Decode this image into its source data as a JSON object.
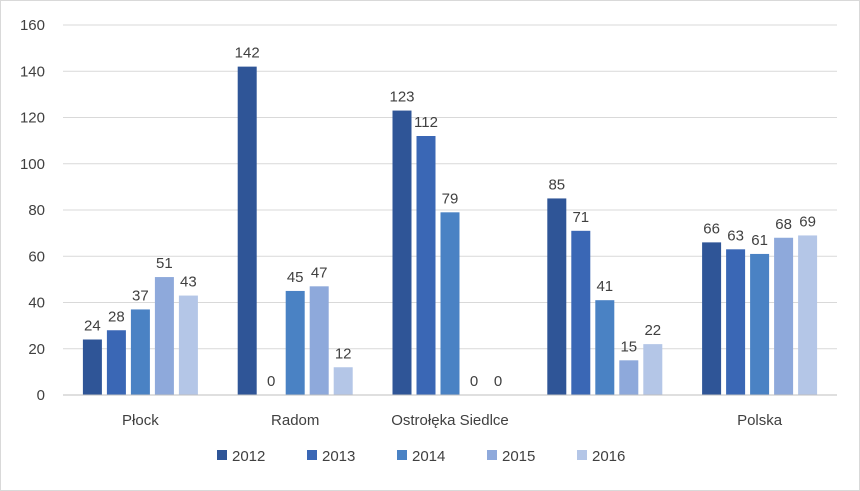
{
  "chart_data": {
    "type": "bar",
    "categories": [
      "Płock",
      "Radom",
      "Ostrołęka Siedlce",
      "",
      "Polska"
    ],
    "series": [
      {
        "name": "2012",
        "color": "#2f5597",
        "values": [
          24,
          142,
          123,
          85,
          66
        ]
      },
      {
        "name": "2013",
        "color": "#3a67b5",
        "values": [
          28,
          0,
          112,
          71,
          63
        ]
      },
      {
        "name": "2014",
        "color": "#4a82c4",
        "values": [
          37,
          45,
          79,
          41,
          61
        ]
      },
      {
        "name": "2015",
        "color": "#8ea9db",
        "values": [
          51,
          47,
          0,
          15,
          68
        ]
      },
      {
        "name": "2016",
        "color": "#b4c6e7",
        "values": [
          43,
          12,
          0,
          22,
          69
        ]
      }
    ],
    "ylim": [
      0,
      160
    ],
    "yticks": [
      0,
      20,
      40,
      60,
      80,
      100,
      120,
      140,
      160
    ],
    "grid": true,
    "legend_position": "bottom",
    "data_labels": [
      [
        "24",
        "28",
        "37",
        "51",
        "43"
      ],
      [
        "142",
        "0",
        "45",
        "47",
        "12"
      ],
      [
        "123",
        "112",
        "79",
        "0",
        "0"
      ],
      [
        "85",
        "71",
        "41",
        "15",
        "22"
      ],
      [
        "66",
        "63",
        "61",
        "68",
        "69"
      ]
    ],
    "title": "",
    "xlabel": "",
    "ylabel": ""
  }
}
